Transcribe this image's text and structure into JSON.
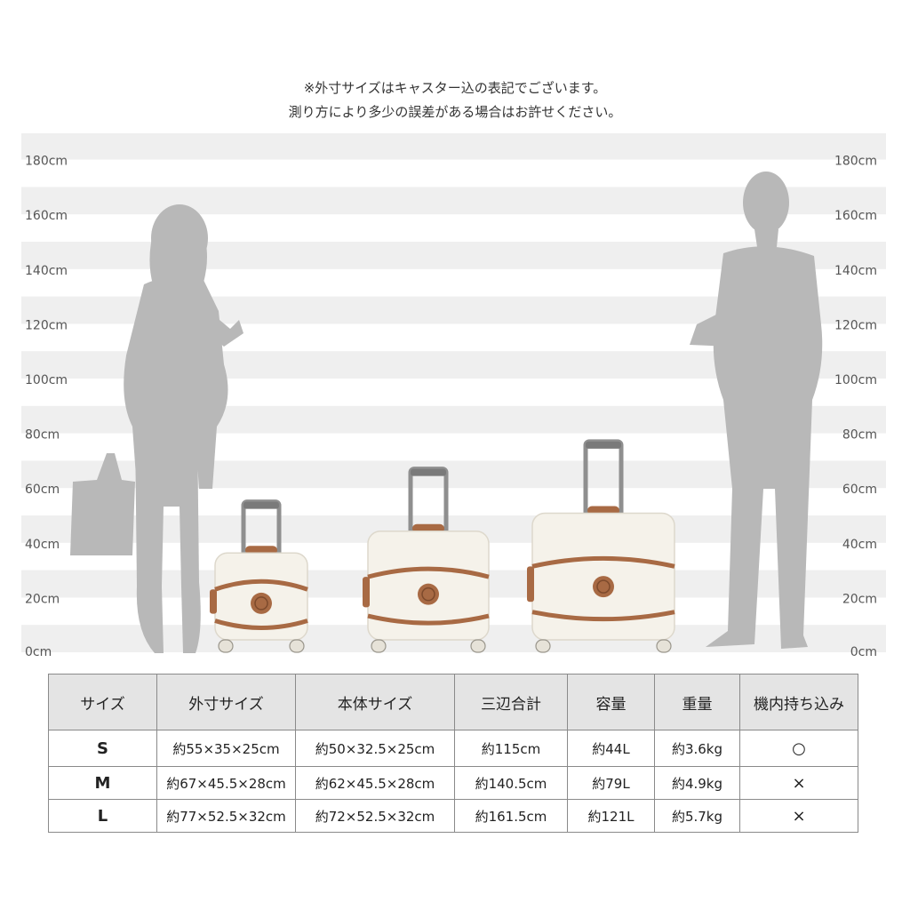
{
  "notice": {
    "line1": "※外寸サイズはキャスター込の表記でございます。",
    "line2": "測り方により多少の誤差がある場合はお許せください。"
  },
  "height_scale": {
    "labels": [
      "180cm",
      "160cm",
      "140cm",
      "120cm",
      "100cm",
      "80cm",
      "60cm",
      "40cm",
      "20cm",
      "0cm"
    ]
  },
  "figures": [
    {
      "name": "woman-silhouette",
      "height_cm": 165
    },
    {
      "name": "luggage-s",
      "size": "S",
      "height_cm": 55
    },
    {
      "name": "luggage-m",
      "size": "M",
      "height_cm": 67
    },
    {
      "name": "luggage-l",
      "size": "L",
      "height_cm": 77
    },
    {
      "name": "man-silhouette",
      "height_cm": 180
    }
  ],
  "colors": {
    "stripe": "#efefef",
    "silhouette": "#b8b8b8",
    "suitcase_body": "#f5f2ea",
    "leather": "#a86a44",
    "header_bg": "#e4e4e4",
    "border": "#8a8a8a"
  },
  "table": {
    "headers": [
      "サイズ",
      "外寸サイズ",
      "本体サイズ",
      "三辺合計",
      "容量",
      "重量",
      "機内持ち込み"
    ],
    "rows": [
      [
        "S",
        "約55×35×25cm",
        "約50×32.5×25cm",
        "約115cm",
        "約44L",
        "約3.6kg",
        "○"
      ],
      [
        "M",
        "約67×45.5×28cm",
        "約62×45.5×28cm",
        "約140.5cm",
        "約79L",
        "約4.9kg",
        "×"
      ],
      [
        "L",
        "約77×52.5×32cm",
        "約72×52.5×32cm",
        "約161.5cm",
        "約121L",
        "約5.7kg",
        "×"
      ]
    ]
  }
}
